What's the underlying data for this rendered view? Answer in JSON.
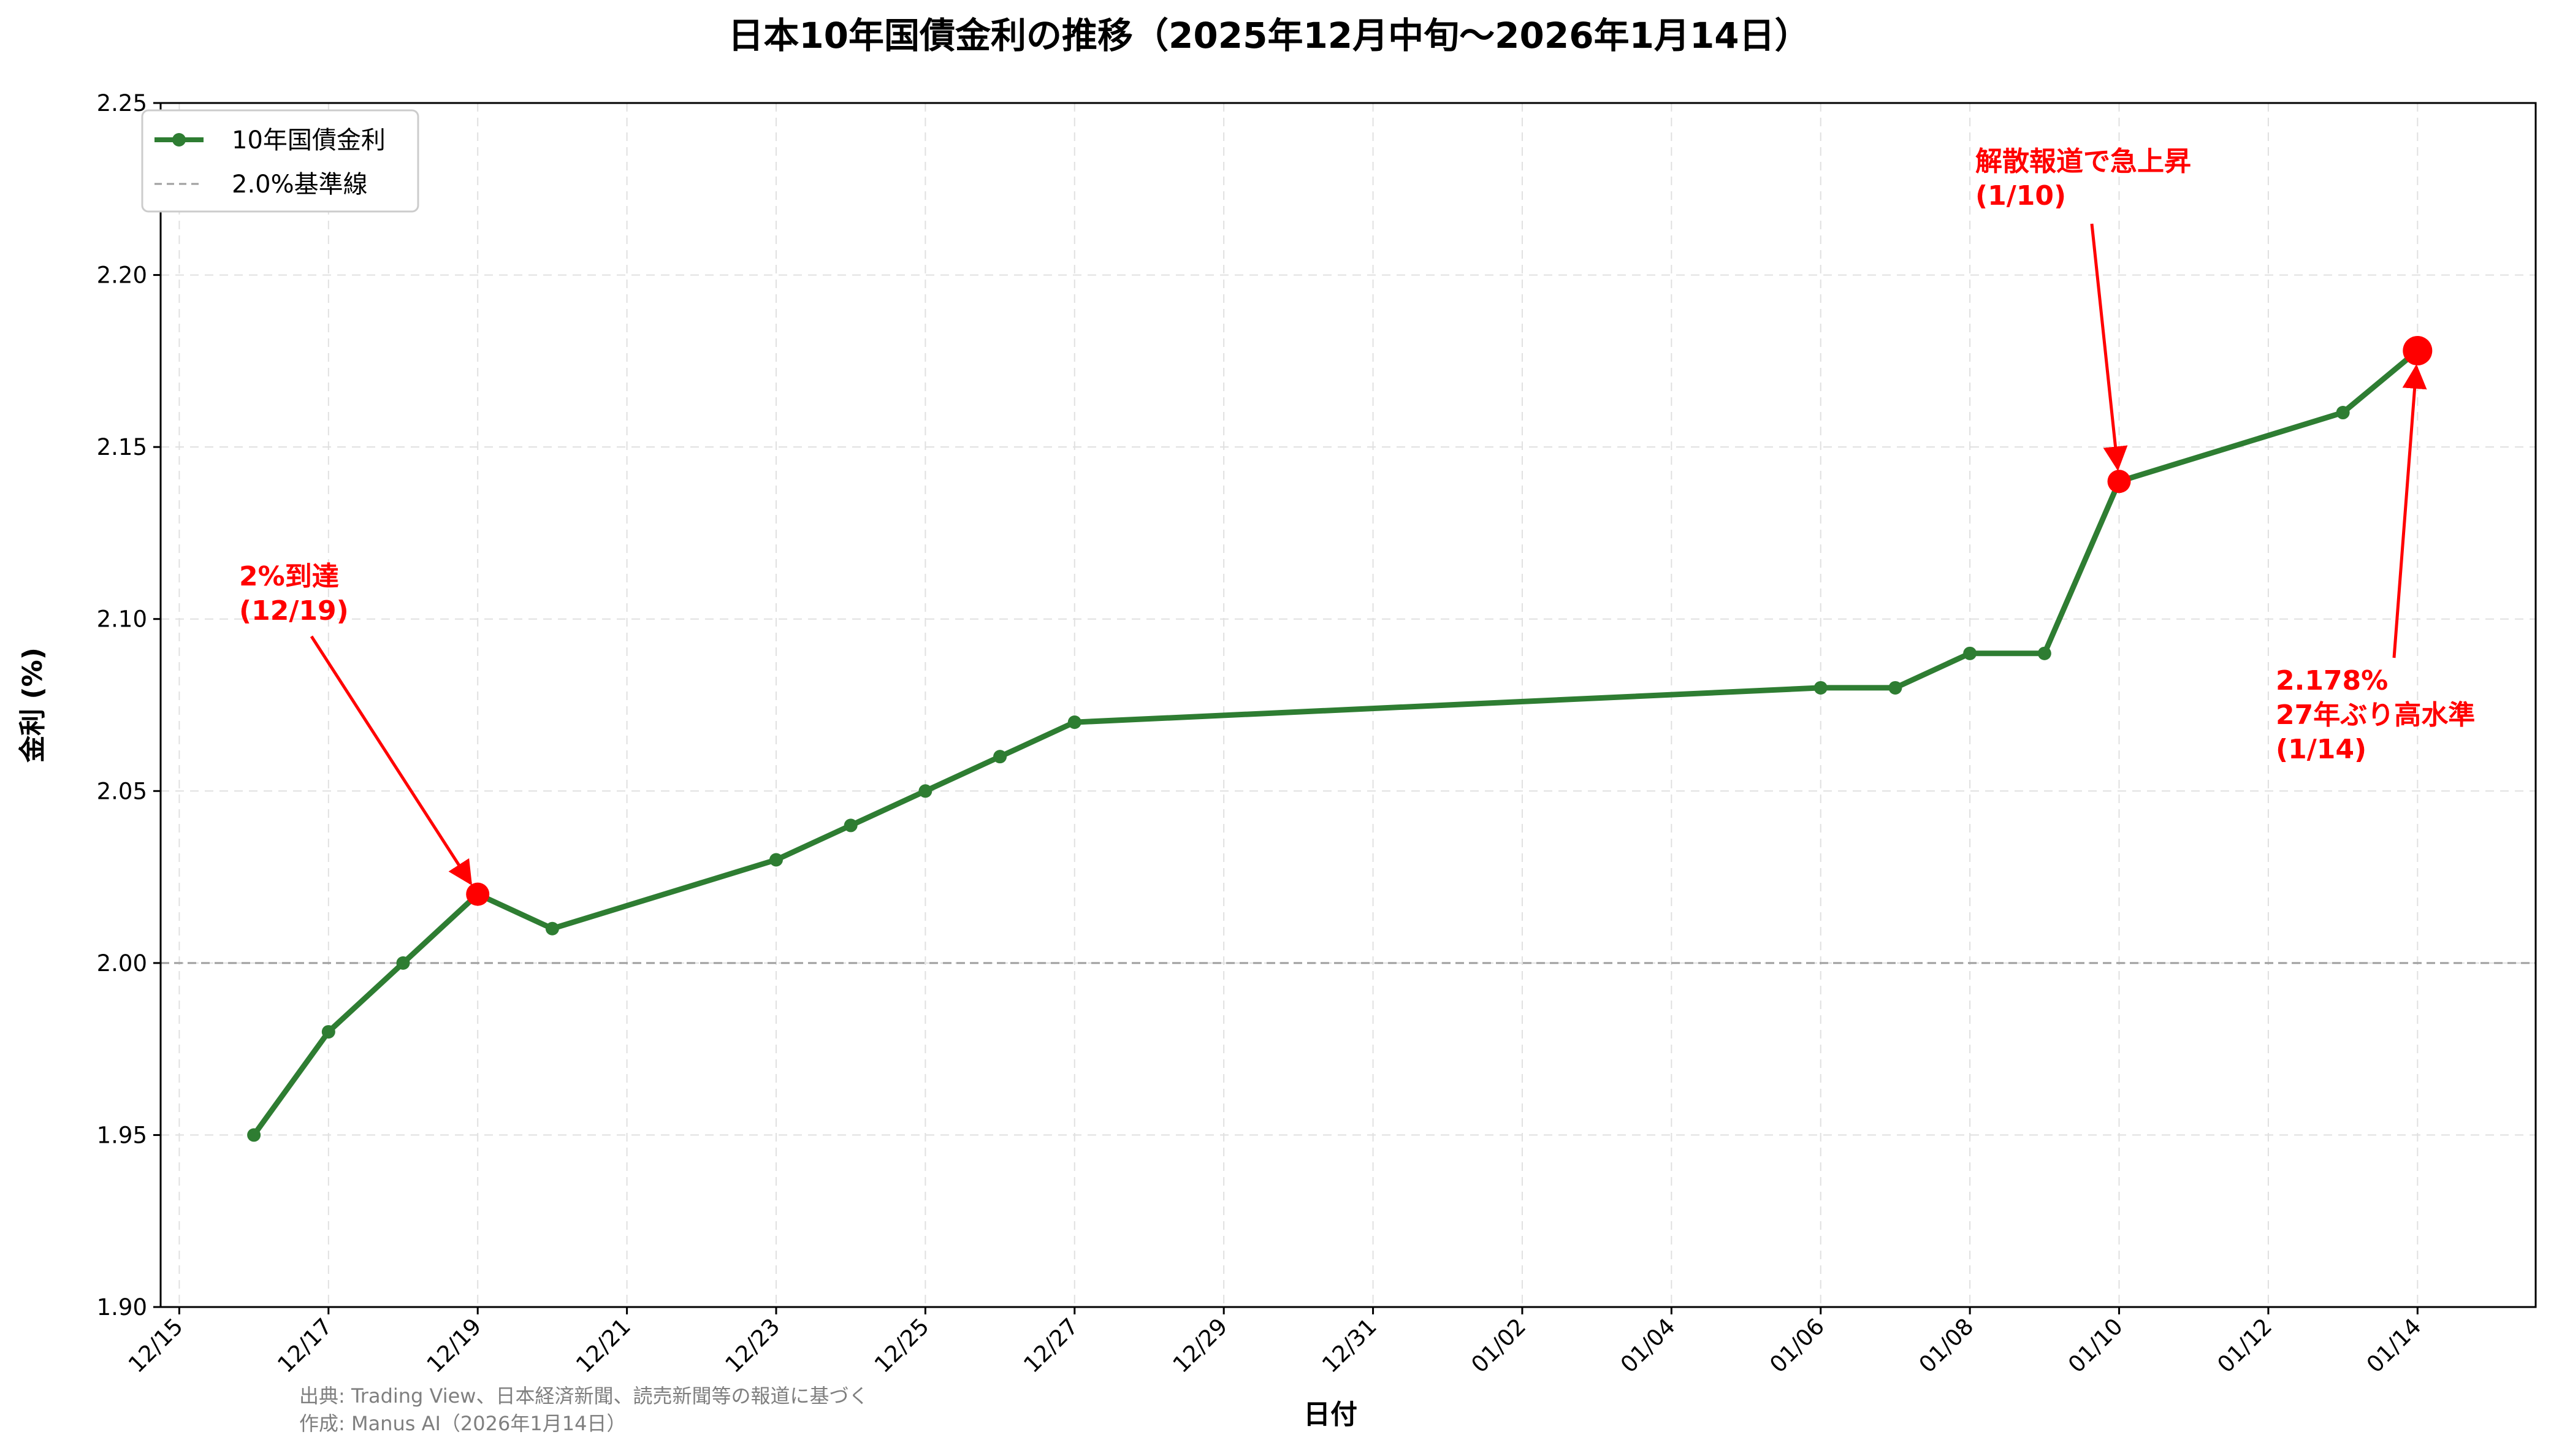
{
  "chart_data": {
    "type": "line",
    "title": "日本10年国債金利の推移（2025年12月中旬〜2026年1月14日）",
    "xlabel": "日付",
    "ylabel": "金利 (%)",
    "ylim": [
      1.9,
      2.25
    ],
    "y_ticks": [
      "1.90",
      "1.95",
      "2.00",
      "2.05",
      "2.10",
      "2.15",
      "2.20",
      "2.25"
    ],
    "x_tick_labels": [
      "12/15",
      "12/17",
      "12/19",
      "12/21",
      "12/23",
      "12/25",
      "12/27",
      "12/29",
      "12/31",
      "01/02",
      "01/04",
      "01/06",
      "01/08",
      "01/10",
      "01/12",
      "01/14"
    ],
    "grid": true,
    "legend_position": "top-left",
    "series": [
      {
        "name": "10年国債金利",
        "color": "#2e7d32",
        "x": [
          "2025-12-16",
          "2025-12-17",
          "2025-12-18",
          "2025-12-19",
          "2025-12-20",
          "2025-12-23",
          "2025-12-24",
          "2025-12-25",
          "2025-12-26",
          "2025-12-27",
          "2026-01-06",
          "2026-01-07",
          "2026-01-08",
          "2026-01-09",
          "2026-01-10",
          "2026-01-13",
          "2026-01-14"
        ],
        "values": [
          1.95,
          1.98,
          2.0,
          2.02,
          2.01,
          2.03,
          2.04,
          2.05,
          2.06,
          2.07,
          2.08,
          2.08,
          2.09,
          2.09,
          2.14,
          2.16,
          2.178
        ]
      }
    ],
    "reference_line": {
      "name": "2.0%基準線",
      "value": 2.0,
      "color": "#9e9e9e"
    },
    "highlight_color": "#ff0000",
    "annotations": [
      {
        "lines": [
          "2%到達",
          "(12/19)"
        ],
        "x": "2025-12-19",
        "y": 2.02
      },
      {
        "lines": [
          "解散報道で急上昇",
          "(1/10)"
        ],
        "x": "2026-01-10",
        "y": 2.14
      },
      {
        "lines": [
          "2.178%",
          "27年ぶり高水準",
          "(1/14)"
        ],
        "x": "2026-01-14",
        "y": 2.178
      }
    ]
  },
  "source_note": {
    "line1": "出典: Trading View、日本経済新聞、読売新聞等の報道に基づく",
    "line2": "作成: Manus AI（2026年1月14日）"
  }
}
